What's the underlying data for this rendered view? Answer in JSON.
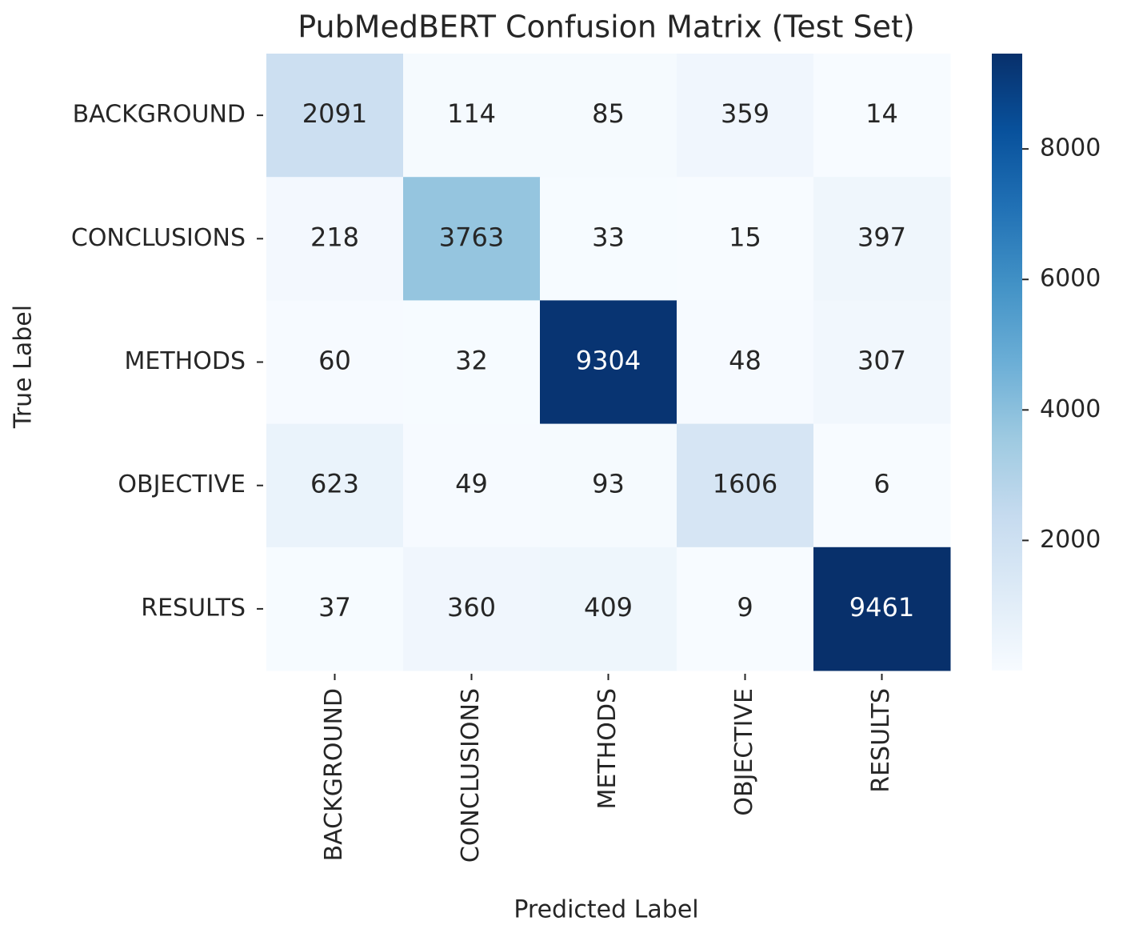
{
  "chart_data": {
    "type": "heatmap",
    "title": "PubMedBERT Confusion Matrix (Test Set)",
    "x_label": "Predicted Label",
    "y_label": "True Label",
    "x_categories": [
      "BACKGROUND",
      "CONCLUSIONS",
      "METHODS",
      "OBJECTIVE",
      "RESULTS"
    ],
    "y_categories": [
      "BACKGROUND",
      "CONCLUSIONS",
      "METHODS",
      "OBJECTIVE",
      "RESULTS"
    ],
    "values": [
      [
        2091,
        114,
        85,
        359,
        14
      ],
      [
        218,
        3763,
        33,
        15,
        397
      ],
      [
        60,
        32,
        9304,
        48,
        307
      ],
      [
        623,
        49,
        93,
        1606,
        6
      ],
      [
        37,
        360,
        409,
        9,
        9461
      ]
    ],
    "colormap": "Blues",
    "zlim": [
      6,
      9461
    ],
    "zticks": [
      2000,
      4000,
      6000,
      8000
    ]
  }
}
